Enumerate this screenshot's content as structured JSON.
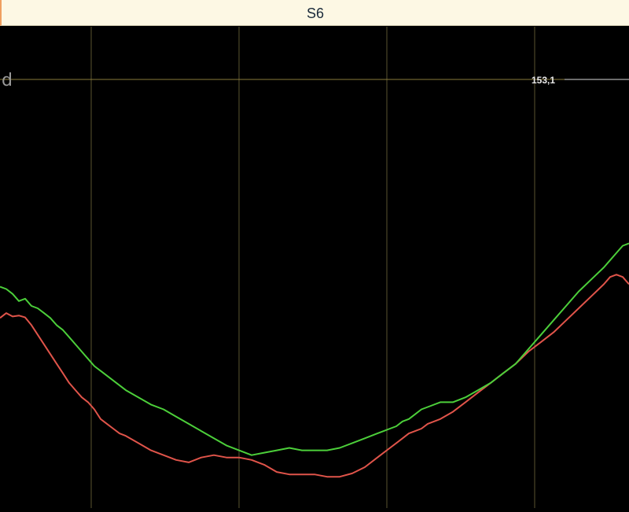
{
  "header": {
    "title": "S6"
  },
  "chart_data": {
    "type": "line",
    "title": "",
    "axis_letter": "d",
    "reference_line": {
      "label": "153,1",
      "color": "#8a7a3a"
    },
    "grid": true,
    "grid_color": "#5a5530",
    "background": "#000000",
    "x_range": [
      0,
      100
    ],
    "y_range": [
      0,
      100
    ],
    "vertical_gridlines": [
      14.5,
      38,
      61.5,
      85
    ],
    "series": [
      {
        "color": "#e0544a",
        "x": [
          0,
          1,
          2,
          3,
          4,
          5,
          6,
          7,
          8,
          9,
          10,
          11,
          12,
          13,
          14,
          15,
          16,
          17,
          18,
          19,
          20,
          22,
          24,
          26,
          28,
          30,
          32,
          34,
          36,
          38,
          40,
          42,
          44,
          46,
          48,
          50,
          52,
          54,
          56,
          58,
          60,
          61,
          62,
          63,
          64,
          65,
          66,
          67,
          68,
          70,
          72,
          74,
          76,
          78,
          80,
          82,
          84,
          86,
          88,
          90,
          92,
          94,
          96,
          97,
          98,
          99,
          100
        ],
        "y": [
          39.5,
          40.5,
          39.8,
          40,
          39.6,
          38,
          36,
          34,
          32,
          30,
          28,
          26,
          24.5,
          23,
          22,
          20.5,
          18.5,
          17.5,
          16.5,
          15.5,
          15,
          13.5,
          12,
          11,
          10,
          9.5,
          10.5,
          11,
          10.5,
          10.5,
          10,
          9,
          7.5,
          7,
          7,
          7,
          6.5,
          6.5,
          7.2,
          8.5,
          10.5,
          11.5,
          12.5,
          13.5,
          14.5,
          15.5,
          16,
          16.5,
          17.5,
          18.5,
          20,
          22,
          24,
          26,
          28,
          30,
          32.5,
          34.5,
          36.5,
          39,
          41.5,
          44,
          46.5,
          48,
          48.5,
          48,
          46.5
        ]
      },
      {
        "color": "#4ccf3a",
        "x": [
          0,
          1,
          2,
          3,
          4,
          5,
          6,
          7,
          8,
          9,
          10,
          11,
          12,
          13,
          14,
          15,
          16,
          17,
          18,
          19,
          20,
          22,
          24,
          26,
          28,
          30,
          32,
          34,
          36,
          38,
          40,
          42,
          44,
          46,
          48,
          50,
          52,
          54,
          56,
          58,
          60,
          61,
          62,
          63,
          64,
          65,
          66,
          67,
          68,
          70,
          72,
          74,
          76,
          78,
          80,
          82,
          84,
          86,
          88,
          90,
          92,
          94,
          96,
          97,
          98,
          99,
          100
        ],
        "y": [
          46,
          45.5,
          44.5,
          43,
          43.5,
          42,
          41.5,
          40.5,
          39.5,
          38,
          37,
          35.5,
          34,
          32.5,
          31,
          29.5,
          28.5,
          27.5,
          26.5,
          25.5,
          24.5,
          23,
          21.5,
          20.5,
          19,
          17.5,
          16,
          14.5,
          13,
          12,
          11,
          11.5,
          12,
          12.5,
          12,
          12,
          12,
          12.5,
          13.5,
          14.5,
          15.5,
          16,
          16.5,
          17,
          18,
          18.5,
          19.5,
          20.5,
          21,
          22,
          22,
          23,
          24.5,
          26,
          28,
          30,
          33,
          36,
          39,
          42,
          45,
          47.5,
          50,
          51.5,
          53,
          54.5,
          55
        ]
      }
    ]
  }
}
